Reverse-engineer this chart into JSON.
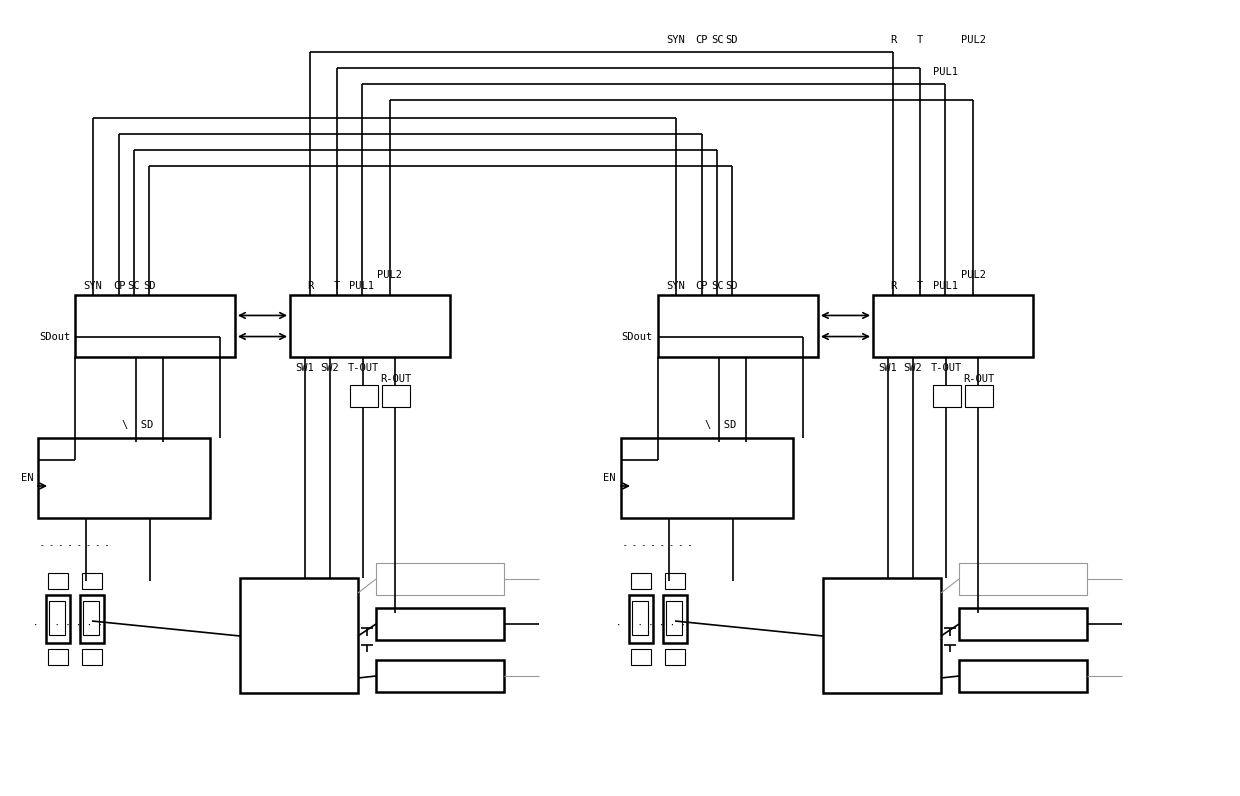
{
  "bg": "#ffffff",
  "lc": "#000000",
  "lg": "#999999",
  "lw_thick": 1.8,
  "lw_med": 1.2,
  "lw_thin": 0.8,
  "figsize": [
    12.4,
    7.96
  ],
  "dpi": 100,
  "ctrl1": [
    75,
    295,
    160,
    62
  ],
  "drv1": [
    290,
    295,
    160,
    62
  ],
  "en1": [
    38,
    438,
    172,
    80
  ],
  "ctrl2": [
    658,
    295,
    160,
    62
  ],
  "drv2": [
    873,
    295,
    160,
    62
  ],
  "en2": [
    621,
    438,
    172,
    80
  ],
  "mdrv1": [
    240,
    578,
    118,
    115
  ],
  "mdrv2": [
    823,
    578,
    118,
    115
  ],
  "OFF": 583
}
